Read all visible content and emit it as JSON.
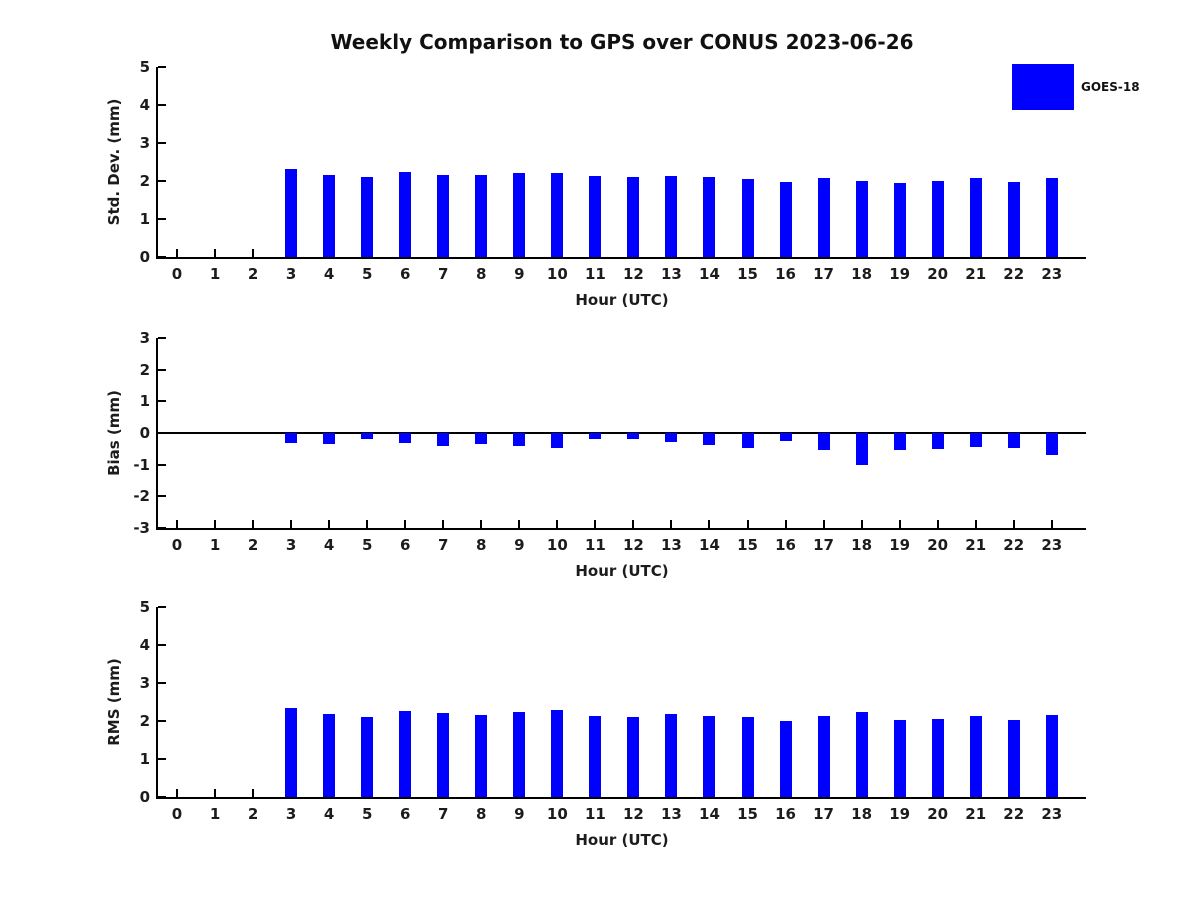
{
  "title": "Weekly Comparison to GPS over CONUS 2023-06-26",
  "legend": {
    "label": "GOES-18",
    "color": "#0000ff"
  },
  "chart_data": [
    {
      "type": "bar",
      "name": "std-dev",
      "ylabel": "Std. Dev. (mm)",
      "xlabel": "Hour (UTC)",
      "categories": [
        0,
        1,
        2,
        3,
        4,
        5,
        6,
        7,
        8,
        9,
        10,
        11,
        12,
        13,
        14,
        15,
        16,
        17,
        18,
        19,
        20,
        21,
        22,
        23
      ],
      "series": [
        {
          "name": "GOES-18",
          "color": "#0000ff",
          "values": [
            null,
            null,
            null,
            2.32,
            2.17,
            2.1,
            2.24,
            2.17,
            2.15,
            2.2,
            2.22,
            2.12,
            2.1,
            2.14,
            2.1,
            2.06,
            1.98,
            2.08,
            2.01,
            1.96,
            2.0,
            2.07,
            1.98,
            2.07
          ]
        }
      ],
      "ylim": [
        0,
        5
      ],
      "yticks": [
        5,
        4,
        3,
        2,
        1,
        0
      ],
      "xlim": [
        -0.5,
        23.9
      ],
      "grid": false,
      "zero_line": false,
      "legend_position": "top-right-outside"
    },
    {
      "type": "bar",
      "name": "bias",
      "ylabel": "Bias (mm)",
      "xlabel": "Hour (UTC)",
      "categories": [
        0,
        1,
        2,
        3,
        4,
        5,
        6,
        7,
        8,
        9,
        10,
        11,
        12,
        13,
        14,
        15,
        16,
        17,
        18,
        19,
        20,
        21,
        22,
        23
      ],
      "series": [
        {
          "name": "GOES-18",
          "color": "#0000ff",
          "values": [
            null,
            null,
            null,
            -0.3,
            -0.35,
            -0.2,
            -0.32,
            -0.42,
            -0.36,
            -0.42,
            -0.48,
            -0.2,
            -0.18,
            -0.28,
            -0.38,
            -0.46,
            -0.25,
            -0.55,
            -1.01,
            -0.55,
            -0.52,
            -0.45,
            -0.47,
            -0.68
          ]
        }
      ],
      "ylim": [
        -3,
        3
      ],
      "yticks": [
        3,
        2,
        1,
        0,
        -1,
        -2,
        -3
      ],
      "xlim": [
        -0.5,
        23.9
      ],
      "grid": false,
      "zero_line": true
    },
    {
      "type": "bar",
      "name": "rms",
      "ylabel": "RMS (mm)",
      "xlabel": "Hour (UTC)",
      "categories": [
        0,
        1,
        2,
        3,
        4,
        5,
        6,
        7,
        8,
        9,
        10,
        11,
        12,
        13,
        14,
        15,
        16,
        17,
        18,
        19,
        20,
        21,
        22,
        23
      ],
      "series": [
        {
          "name": "GOES-18",
          "color": "#0000ff",
          "values": [
            null,
            null,
            null,
            2.35,
            2.18,
            2.1,
            2.26,
            2.2,
            2.16,
            2.23,
            2.29,
            2.14,
            2.1,
            2.18,
            2.12,
            2.1,
            2.0,
            2.13,
            2.23,
            2.02,
            2.05,
            2.12,
            2.02,
            2.16
          ]
        }
      ],
      "ylim": [
        0,
        5
      ],
      "yticks": [
        5,
        4,
        3,
        2,
        1,
        0
      ],
      "xlim": [
        -0.5,
        23.9
      ],
      "grid": false,
      "zero_line": false
    }
  ]
}
